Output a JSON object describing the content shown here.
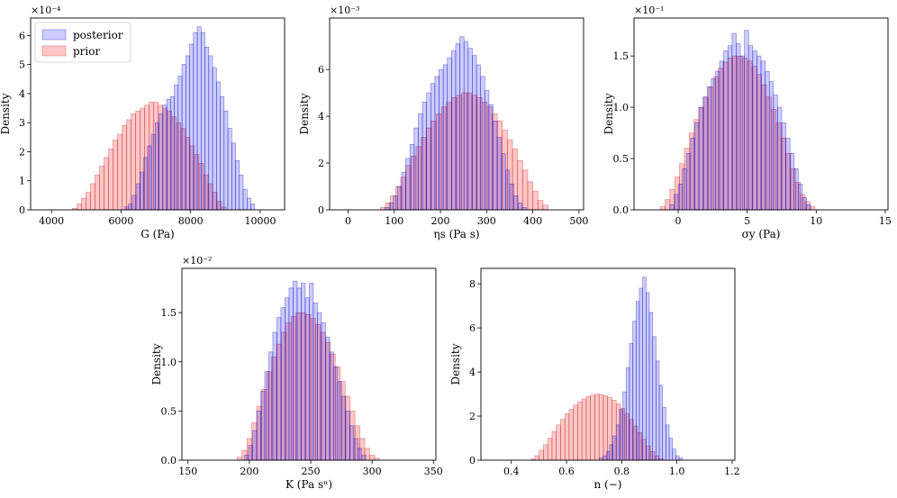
{
  "colors": {
    "posterior_fill": "rgba(0,0,255,0.2)",
    "posterior_edge": "rgba(0,0,170,0.5)",
    "prior_fill": "rgba(255,0,0,0.22)",
    "prior_edge": "rgba(170,0,0,0.45)"
  },
  "legend": {
    "posterior": "posterior",
    "prior": "prior"
  },
  "chart_data": [
    {
      "type": "histogram",
      "xlabel": "G (Pa)",
      "ylabel": "Density",
      "multiplier": "×10⁻⁴",
      "xlim": [
        3400,
        10700
      ],
      "ylim": [
        0,
        6.6
      ],
      "xticks": [
        4000,
        6000,
        8000,
        10000
      ],
      "yticks": [
        0,
        1,
        2,
        3,
        4,
        5,
        6
      ],
      "ytick_labels": [
        "0",
        "1",
        "2",
        "3",
        "4",
        "5",
        "6"
      ],
      "legend": "top-left",
      "series": [
        {
          "name": "posterior",
          "bin_start": 6100,
          "bin_width": 110,
          "values": [
            0.1,
            0.2,
            0.5,
            0.9,
            1.3,
            1.8,
            2.2,
            2.6,
            3.0,
            3.3,
            3.6,
            3.8,
            3.9,
            4.3,
            4.6,
            5.0,
            5.3,
            5.7,
            6.1,
            6.3,
            6.1,
            5.6,
            5.3,
            4.9,
            4.4,
            3.9,
            3.4,
            2.8,
            2.3,
            1.7,
            1.2,
            0.7,
            0.4,
            0.2
          ]
        },
        {
          "name": "prior",
          "bin_start": 4600,
          "bin_width": 130,
          "values": [
            0.05,
            0.2,
            0.4,
            0.6,
            0.9,
            1.2,
            1.5,
            1.8,
            2.1,
            2.4,
            2.6,
            2.9,
            3.1,
            3.3,
            3.4,
            3.5,
            3.6,
            3.7,
            3.7,
            3.6,
            3.5,
            3.4,
            3.2,
            3.0,
            2.8,
            2.5,
            2.2,
            1.9,
            1.6,
            1.2,
            0.9,
            0.6,
            0.3,
            0.1
          ]
        }
      ]
    },
    {
      "type": "histogram",
      "xlabel": "ηs (Pa s)",
      "ylabel": "Density",
      "multiplier": "×10⁻³",
      "xlim": [
        -40,
        510
      ],
      "ylim": [
        0,
        8.2
      ],
      "xticks": [
        0,
        100,
        200,
        300,
        400,
        500
      ],
      "yticks": [
        0,
        2,
        4,
        6
      ],
      "ytick_labels": [
        "0",
        "2",
        "4",
        "6"
      ],
      "series": [
        {
          "name": "posterior",
          "bin_start": 80,
          "bin_width": 9,
          "values": [
            0.1,
            0.3,
            0.6,
            1.0,
            1.6,
            2.2,
            2.8,
            3.5,
            4.1,
            4.6,
            5.0,
            5.4,
            5.7,
            6.0,
            6.2,
            6.5,
            6.8,
            7.1,
            7.4,
            7.2,
            6.9,
            6.6,
            6.2,
            5.7,
            5.1,
            4.5,
            3.8,
            3.1,
            2.4,
            1.7,
            1.1,
            0.6,
            0.3,
            0.1
          ]
        },
        {
          "name": "prior",
          "bin_start": 70,
          "bin_width": 11,
          "values": [
            0.1,
            0.3,
            0.6,
            1.0,
            1.4,
            1.9,
            2.3,
            2.7,
            3.1,
            3.5,
            3.8,
            4.1,
            4.4,
            4.6,
            4.8,
            4.9,
            5.0,
            5.0,
            4.9,
            4.8,
            4.6,
            4.4,
            4.1,
            3.8,
            3.4,
            3.0,
            2.6,
            2.1,
            1.7,
            1.2,
            0.8,
            0.4,
            0.2
          ]
        }
      ]
    },
    {
      "type": "histogram",
      "xlabel": "σy (Pa)",
      "ylabel": "Density",
      "multiplier": "×10⁻¹",
      "xlim": [
        -3.2,
        15.2
      ],
      "ylim": [
        0,
        1.87
      ],
      "xticks": [
        0,
        5,
        10,
        15
      ],
      "yticks": [
        0,
        0.5,
        1.0,
        1.5
      ],
      "ytick_labels": [
        "0.0",
        "0.5",
        "1.0",
        "1.5"
      ],
      "series": [
        {
          "name": "posterior",
          "bin_start": -0.6,
          "bin_width": 0.3,
          "values": [
            0.05,
            0.15,
            0.25,
            0.4,
            0.55,
            0.7,
            0.85,
            1.0,
            1.1,
            1.2,
            1.28,
            1.35,
            1.45,
            1.55,
            1.6,
            1.72,
            1.62,
            1.5,
            1.75,
            1.6,
            1.55,
            1.5,
            1.45,
            1.35,
            1.25,
            1.12,
            1.0,
            0.85,
            0.7,
            0.55,
            0.4,
            0.25,
            0.12,
            0.05
          ]
        },
        {
          "name": "prior",
          "bin_start": -1.3,
          "bin_width": 0.35,
          "values": [
            0.03,
            0.1,
            0.2,
            0.32,
            0.45,
            0.6,
            0.75,
            0.88,
            1.0,
            1.1,
            1.2,
            1.3,
            1.38,
            1.44,
            1.48,
            1.5,
            1.5,
            1.48,
            1.45,
            1.4,
            1.32,
            1.22,
            1.1,
            0.98,
            0.85,
            0.7,
            0.55,
            0.4,
            0.27,
            0.15,
            0.08,
            0.03
          ]
        }
      ]
    },
    {
      "type": "histogram",
      "xlabel": "K (Pa sⁿ)",
      "ylabel": "Density",
      "multiplier": "×10⁻²",
      "xlim": [
        145,
        352
      ],
      "ylim": [
        0,
        1.95
      ],
      "xticks": [
        150,
        200,
        250,
        300,
        350
      ],
      "yticks": [
        0,
        0.5,
        1.0,
        1.5
      ],
      "ytick_labels": [
        "0.0",
        "0.5",
        "1.0",
        "1.5"
      ],
      "series": [
        {
          "name": "posterior",
          "bin_start": 196,
          "bin_width": 3.3,
          "values": [
            0.05,
            0.15,
            0.3,
            0.5,
            0.7,
            0.9,
            1.1,
            1.3,
            1.45,
            1.55,
            1.65,
            1.75,
            1.82,
            1.75,
            1.8,
            1.65,
            1.8,
            1.6,
            1.5,
            1.4,
            1.25,
            1.1,
            0.95,
            0.8,
            0.65,
            0.5,
            0.35,
            0.22,
            0.12,
            0.05
          ]
        },
        {
          "name": "prior",
          "bin_start": 190,
          "bin_width": 4,
          "values": [
            0.03,
            0.1,
            0.22,
            0.38,
            0.55,
            0.72,
            0.9,
            1.05,
            1.18,
            1.3,
            1.4,
            1.46,
            1.5,
            1.5,
            1.48,
            1.44,
            1.38,
            1.3,
            1.2,
            1.08,
            0.95,
            0.8,
            0.65,
            0.5,
            0.35,
            0.22,
            0.12,
            0.05,
            0.02
          ]
        }
      ]
    },
    {
      "type": "histogram",
      "xlabel": "n (−)",
      "ylabel": "Density",
      "xlim": [
        0.29,
        1.21
      ],
      "ylim": [
        0,
        8.7
      ],
      "xticks": [
        0.4,
        0.6,
        0.8,
        1.0,
        1.2
      ],
      "xtick_labels": [
        "0.4",
        "0.6",
        "0.8",
        "1.0",
        "1.2"
      ],
      "yticks": [
        0,
        2,
        4,
        6,
        8
      ],
      "ytick_labels": [
        "0",
        "2",
        "4",
        "6",
        "8"
      ],
      "series": [
        {
          "name": "posterior",
          "bin_start": 0.72,
          "bin_width": 0.012,
          "values": [
            0.1,
            0.2,
            0.4,
            0.7,
            1.1,
            1.6,
            2.3,
            3.1,
            4.2,
            5.3,
            6.3,
            7.2,
            7.8,
            8.3,
            7.6,
            6.7,
            5.6,
            4.5,
            3.4,
            2.4,
            1.6,
            1.0,
            0.5,
            0.2,
            0.1
          ]
        },
        {
          "name": "prior",
          "bin_start": 0.47,
          "bin_width": 0.0155,
          "values": [
            0.05,
            0.2,
            0.45,
            0.7,
            1.0,
            1.3,
            1.6,
            1.85,
            2.1,
            2.3,
            2.5,
            2.65,
            2.78,
            2.88,
            2.95,
            3.0,
            2.98,
            2.92,
            2.85,
            2.72,
            2.55,
            2.35,
            2.1,
            1.85,
            1.55,
            1.25,
            0.95,
            0.65,
            0.4,
            0.2,
            0.08
          ]
        }
      ]
    }
  ]
}
